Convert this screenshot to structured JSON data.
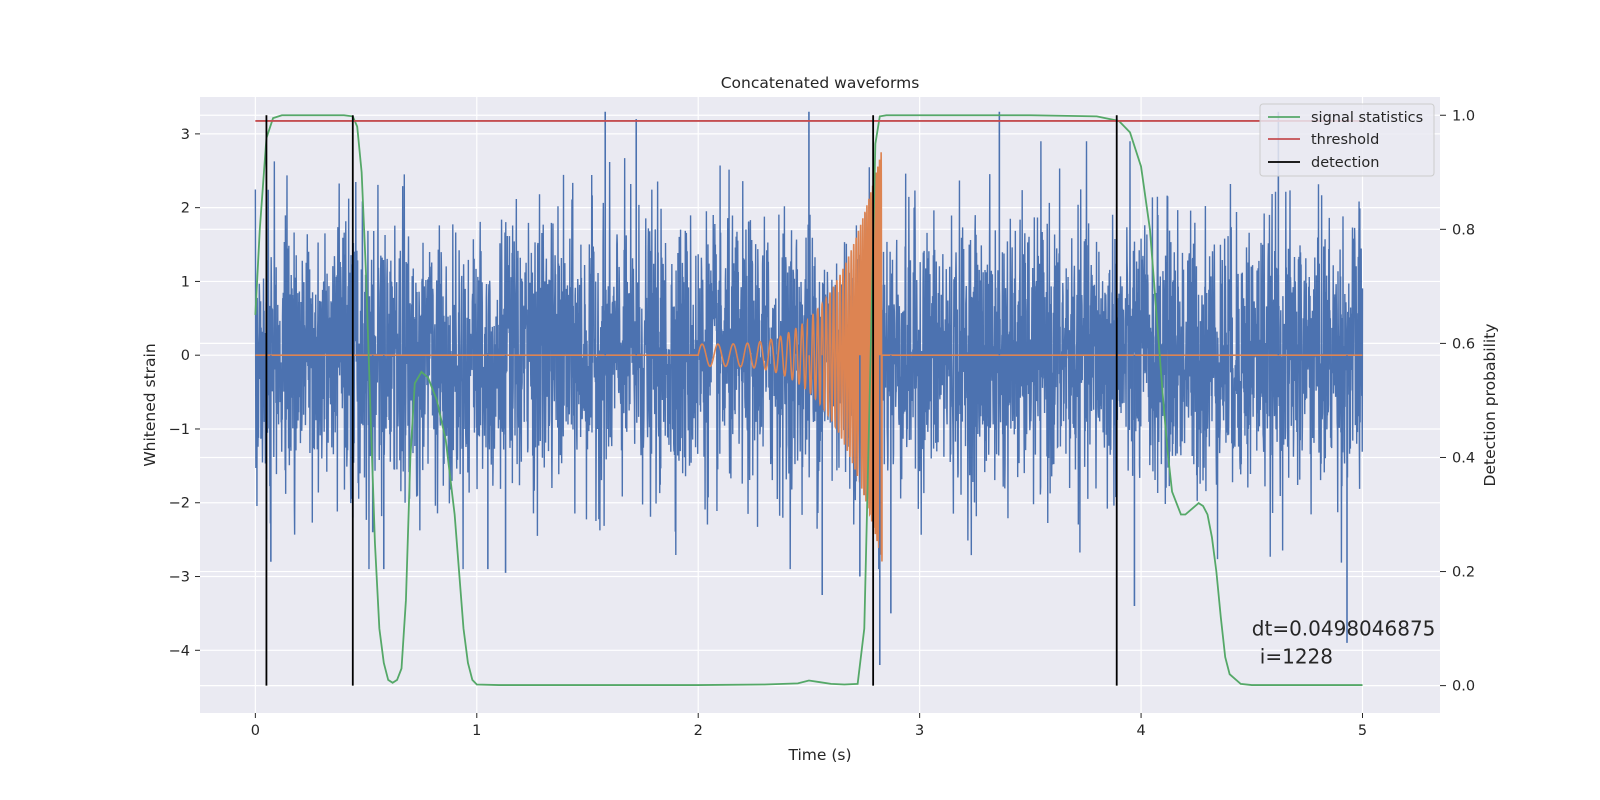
{
  "chart_data": {
    "type": "line",
    "title": "Concatenated waveforms",
    "xlabel": "Time (s)",
    "ylabel": "Whitened strain",
    "ylabel_right": "Detection probability",
    "xlim": [
      -0.25,
      5.35
    ],
    "ylim": [
      -4.85,
      3.5
    ],
    "ylim_right": [
      -0.048,
      1.032
    ],
    "x_ticks": [
      0,
      1,
      2,
      3,
      4,
      5
    ],
    "x_tick_labels": [
      "0",
      "1",
      "2",
      "3",
      "4",
      "5"
    ],
    "y_ticks": [
      3,
      2,
      1,
      0,
      -1,
      -2,
      -3,
      -4
    ],
    "y_tick_labels": [
      "3",
      "2",
      "1",
      "0",
      "−1",
      "−2",
      "−3",
      "−4"
    ],
    "y_right_ticks": [
      1.0,
      0.8,
      0.6,
      0.4,
      0.2,
      0.0
    ],
    "y_right_tick_labels": [
      "1.0",
      "0.8",
      "0.6",
      "0.4",
      "0.2",
      "0.0"
    ],
    "grid": true,
    "legend_position": "top-right",
    "colors": {
      "strain": "#4c72b0",
      "template": "#dd8452",
      "signal_statistics": "#55a868",
      "threshold": "#c44e52",
      "detection": "#000000",
      "axes_bg": "#eaeaf2",
      "grid": "#ffffff"
    },
    "series": [
      {
        "key": "strain",
        "axis": "left",
        "x_range": [
          0,
          5
        ],
        "amplitude_std": 0.9,
        "peaks": [
          {
            "x": 0.05,
            "y": -2.5
          },
          {
            "x": 0.07,
            "y": -2.8
          },
          {
            "x": 0.44,
            "y": -2.2
          },
          {
            "x": 0.53,
            "y": -2.4
          },
          {
            "x": 0.58,
            "y": -2.9
          },
          {
            "x": 1.05,
            "y": -2.9
          },
          {
            "x": 1.13,
            "y": -2.95
          },
          {
            "x": 1.58,
            "y": 3.3
          },
          {
            "x": 1.72,
            "y": 3.2
          },
          {
            "x": 2.5,
            "y": 3.3
          },
          {
            "x": 2.56,
            "y": -3.25
          },
          {
            "x": 2.73,
            "y": -3.0
          },
          {
            "x": 2.82,
            "y": -4.2
          },
          {
            "x": 2.87,
            "y": -3.5
          },
          {
            "x": 3.36,
            "y": 3.3
          },
          {
            "x": 3.97,
            "y": -3.4
          },
          {
            "x": 4.62,
            "y": 3.3
          },
          {
            "x": 4.93,
            "y": -3.9
          }
        ]
      },
      {
        "key": "template",
        "axis": "left",
        "chirp_start": 2.0,
        "chirp_end": 2.83,
        "chirp_freq_start": 14,
        "chirp_freq_end": 140,
        "amp_start": 0.15,
        "amp_end": 2.8
      },
      {
        "name": "signal statistics",
        "key": "signal_statistics",
        "axis": "right",
        "x": [
          0.0,
          0.02,
          0.05,
          0.08,
          0.12,
          0.2,
          0.3,
          0.4,
          0.44,
          0.46,
          0.48,
          0.5,
          0.52,
          0.54,
          0.56,
          0.58,
          0.6,
          0.62,
          0.64,
          0.66,
          0.68,
          0.7,
          0.72,
          0.75,
          0.78,
          0.82,
          0.86,
          0.9,
          0.92,
          0.94,
          0.96,
          0.98,
          1.0,
          1.1,
          1.5,
          2.0,
          2.3,
          2.45,
          2.5,
          2.55,
          2.6,
          2.66,
          2.72,
          2.75,
          2.78,
          2.8,
          2.82,
          2.85,
          3.0,
          3.5,
          3.8,
          3.9,
          3.95,
          4.0,
          4.04,
          4.08,
          4.1,
          4.12,
          4.14,
          4.18,
          4.2,
          4.23,
          4.26,
          4.28,
          4.3,
          4.32,
          4.34,
          4.36,
          4.38,
          4.4,
          4.45,
          4.5,
          5.0
        ],
        "y": [
          0.65,
          0.8,
          0.96,
          0.995,
          1.0,
          1.0,
          1.0,
          1.0,
          0.998,
          0.98,
          0.9,
          0.72,
          0.48,
          0.25,
          0.1,
          0.04,
          0.01,
          0.005,
          0.01,
          0.03,
          0.15,
          0.4,
          0.53,
          0.55,
          0.54,
          0.5,
          0.43,
          0.3,
          0.2,
          0.1,
          0.04,
          0.01,
          0.002,
          0.001,
          0.001,
          0.001,
          0.002,
          0.004,
          0.009,
          0.006,
          0.003,
          0.002,
          0.003,
          0.1,
          0.6,
          0.95,
          0.998,
          1.0,
          1.0,
          1.0,
          0.998,
          0.99,
          0.97,
          0.91,
          0.8,
          0.6,
          0.5,
          0.41,
          0.34,
          0.3,
          0.3,
          0.31,
          0.32,
          0.315,
          0.3,
          0.26,
          0.2,
          0.12,
          0.05,
          0.02,
          0.003,
          0.001,
          0.001
        ]
      },
      {
        "name": "threshold",
        "key": "threshold",
        "axis": "right",
        "x": [
          0,
          5
        ],
        "y": [
          0.99,
          0.99
        ]
      },
      {
        "name": "detection",
        "key": "detection",
        "axis": "right",
        "vlines_x": [
          0.05,
          0.44,
          2.79,
          3.89
        ],
        "vlines_y": [
          0.0,
          1.0
        ]
      }
    ],
    "legend": [
      "signal statistics",
      "threshold",
      "detection"
    ],
    "annotation": {
      "line1": "dt=0.0498046875",
      "line2": "i=1228",
      "x": 4.5,
      "y": -3.5
    }
  }
}
